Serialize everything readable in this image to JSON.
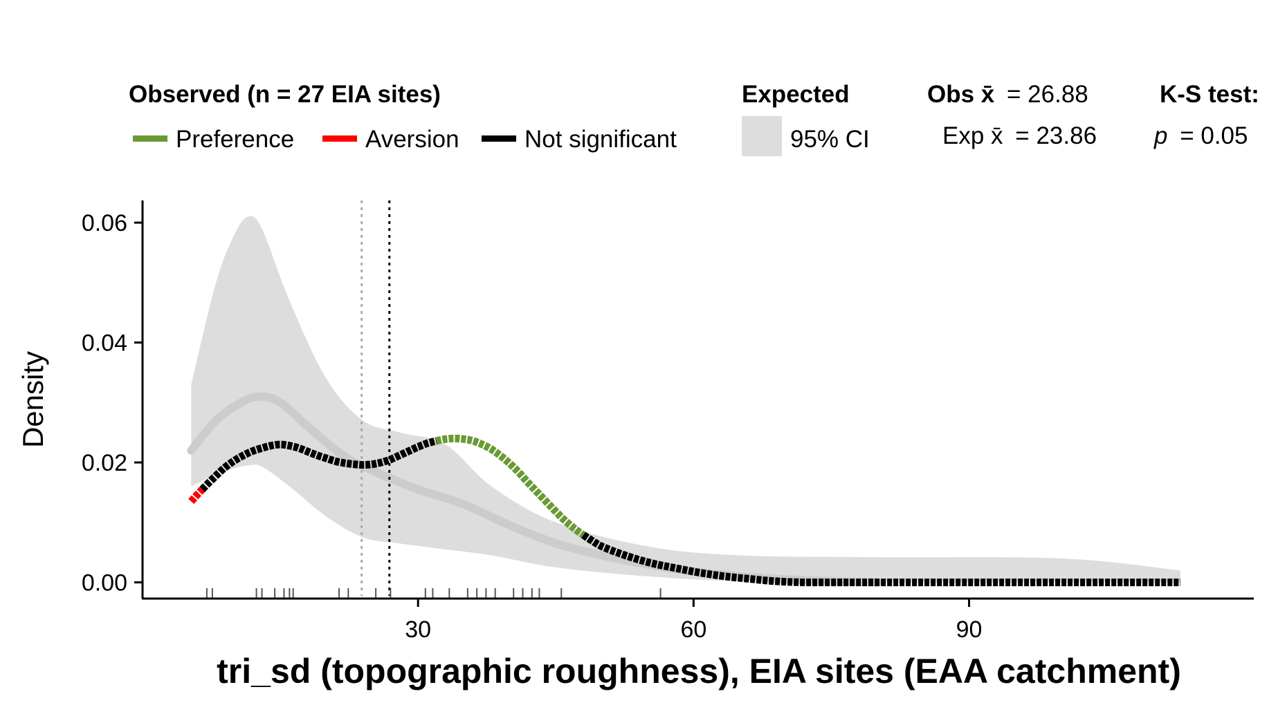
{
  "legend": {
    "observed_title": "Observed (n = 27 EIA sites)",
    "items": [
      {
        "label": "Preference",
        "color": "#6a9a35"
      },
      {
        "label": "Aversion",
        "color": "#ff0000"
      },
      {
        "label": "Not significant",
        "color": "#000000"
      }
    ],
    "expected_title": "Expected",
    "ci_label": "95% CI",
    "obs_mean_label": "Obs x̄",
    "obs_mean_value": "= 26.88",
    "exp_mean_label": "Exp x̄",
    "exp_mean_value": "= 23.86",
    "ks_title": "K-S test:",
    "ks_p_label": "p",
    "ks_p_value": "= 0.05"
  },
  "chart_data": {
    "type": "line",
    "xlabel": "tri_sd (topographic roughness), EIA sites (EAA catchment)",
    "ylabel": "Density",
    "xlim": [
      0,
      121
    ],
    "ylim": [
      -0.0027,
      0.0637
    ],
    "x_ticks": [
      30,
      60,
      90
    ],
    "y_ticks": [
      0.0,
      0.02,
      0.04,
      0.06
    ],
    "y_tick_labels": [
      "0.00",
      "0.02",
      "0.04",
      "0.06"
    ],
    "vlines": [
      {
        "x": 23.86,
        "meaning": "expected mean",
        "color": "#aaaaaa",
        "style": "dotted"
      },
      {
        "x": 26.88,
        "meaning": "observed mean",
        "color": "#000000",
        "style": "dotted"
      }
    ],
    "expected_ci": {
      "color": "#dddddd",
      "x": [
        5.3,
        8,
        10,
        11.5,
        13,
        16,
        20,
        24,
        28,
        33,
        38,
        45,
        55,
        65,
        80,
        100,
        113
      ],
      "upper": [
        0.033,
        0.05,
        0.058,
        0.061,
        0.059,
        0.047,
        0.034,
        0.027,
        0.025,
        0.023,
        0.016,
        0.01,
        0.006,
        0.0045,
        0.0042,
        0.004,
        0.002
      ],
      "lower": [
        0.016,
        0.018,
        0.019,
        0.0195,
        0.0193,
        0.016,
        0.011,
        0.0075,
        0.0065,
        0.0055,
        0.0045,
        0.0025,
        0.001,
        0.0002,
        0.0,
        0.0,
        0.0
      ]
    },
    "expected_mean_curve": {
      "color": "#cccccc",
      "x": [
        5.3,
        8,
        11,
        13,
        15,
        18,
        22,
        26,
        30,
        35,
        40,
        45,
        50,
        55,
        60,
        65,
        70,
        75,
        80
      ],
      "y": [
        0.022,
        0.027,
        0.0302,
        0.031,
        0.03,
        0.026,
        0.021,
        0.018,
        0.0155,
        0.013,
        0.0095,
        0.0065,
        0.0045,
        0.003,
        0.0018,
        0.001,
        0.0005,
        0.0002,
        0.0
      ]
    },
    "observed_curve": {
      "x": [
        5.3,
        6,
        7,
        8,
        9,
        10,
        11,
        12,
        13,
        14,
        15,
        16,
        17,
        18,
        19,
        20,
        21,
        22,
        23,
        24,
        25,
        26,
        27,
        28,
        29,
        30,
        31,
        32,
        33,
        34,
        35,
        36,
        37,
        38,
        39,
        40,
        41,
        42,
        43,
        44,
        45,
        46,
        47,
        48,
        49,
        50,
        52,
        54,
        56,
        58,
        60,
        62,
        64,
        66,
        68,
        70,
        72,
        75,
        80,
        90,
        100,
        113
      ],
      "y": [
        0.0135,
        0.0147,
        0.0163,
        0.0178,
        0.0192,
        0.0203,
        0.0212,
        0.0219,
        0.0224,
        0.0228,
        0.023,
        0.0228,
        0.0224,
        0.0218,
        0.0212,
        0.0207,
        0.0202,
        0.0199,
        0.0197,
        0.0196,
        0.0197,
        0.02,
        0.0205,
        0.0212,
        0.0219,
        0.0226,
        0.0232,
        0.0236,
        0.0239,
        0.024,
        0.0239,
        0.0236,
        0.023,
        0.0222,
        0.0211,
        0.0198,
        0.0183,
        0.0166,
        0.015,
        0.0134,
        0.0118,
        0.0103,
        0.009,
        0.0079,
        0.0069,
        0.006,
        0.0048,
        0.0038,
        0.003,
        0.0024,
        0.0018,
        0.0013,
        0.0009,
        0.0006,
        0.0003,
        0.0001,
        0.0,
        0.0,
        0.0,
        0.0,
        0.0,
        0.0
      ],
      "segments": [
        {
          "status": "Aversion",
          "x_from": 5.3,
          "x_to": 6.5
        },
        {
          "status": "Not significant",
          "x_from": 6.5,
          "x_to": 32
        },
        {
          "status": "Preference",
          "x_from": 32,
          "x_to": 48
        },
        {
          "status": "Not significant",
          "x_from": 48,
          "x_to": 113
        }
      ]
    },
    "rug_x": [
      7,
      7.6,
      12.4,
      13,
      14.4,
      15.4,
      16,
      16.4,
      21.4,
      22.4,
      25.4,
      27,
      30.8,
      31.6,
      33.4,
      35.4,
      36.4,
      37.4,
      38.4,
      40.4,
      41.4,
      42.4,
      43.2,
      45.6,
      56.4
    ]
  }
}
